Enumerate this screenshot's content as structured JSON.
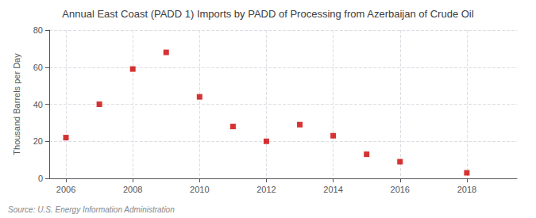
{
  "chart_data": {
    "type": "scatter",
    "title": "Annual East Coast (PADD 1) Imports by PADD of Processing from Azerbaijan of Crude Oil",
    "ylabel": "Thousand Barrels per Day",
    "annotation": "Source: U.S. Energy Information Administration",
    "x": [
      2006,
      2007,
      2008,
      2009,
      2010,
      2011,
      2012,
      2013,
      2014,
      2015,
      2016,
      2018
    ],
    "values": [
      22,
      40,
      59,
      68,
      44,
      28,
      20,
      29,
      23,
      13,
      9,
      3
    ],
    "color": "#cc0000",
    "marker": "square",
    "xlim": [
      2005.5,
      2019.5
    ],
    "xticks": [
      2006,
      2008,
      2010,
      2012,
      2014,
      2016,
      2018
    ],
    "ylim": [
      0,
      80
    ],
    "yticks": [
      0,
      20,
      40,
      60,
      80
    ],
    "grid": true
  }
}
